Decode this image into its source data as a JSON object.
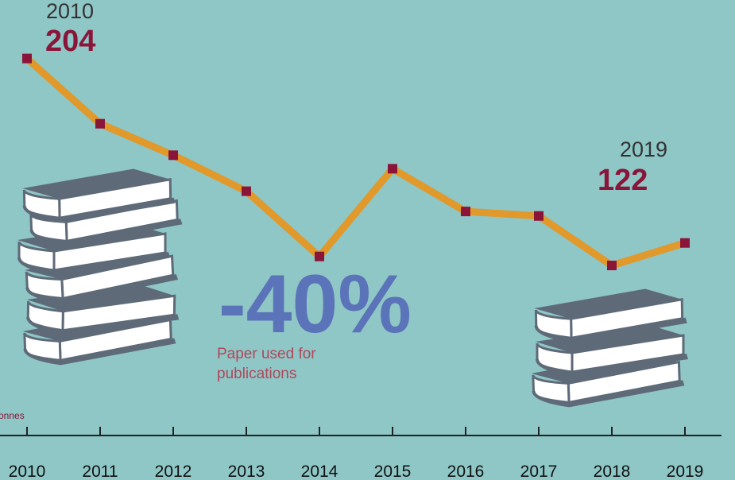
{
  "chart_data": {
    "type": "line",
    "categories": [
      "2010",
      "2011",
      "2012",
      "2013",
      "2014",
      "2015",
      "2016",
      "2017",
      "2018",
      "2019"
    ],
    "values": [
      204,
      175,
      161,
      145,
      116,
      155,
      136,
      134,
      112,
      122
    ],
    "color": "#e0992a",
    "marker_color": "#8b1538",
    "ylim": [
      100,
      230
    ],
    "unit_label": "onnes",
    "headline": "-40%",
    "note": [
      "Paper used for",
      "publications"
    ]
  }
}
